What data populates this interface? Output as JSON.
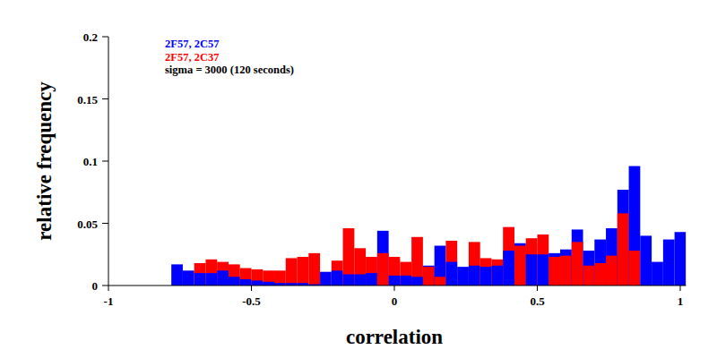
{
  "chart_data": {
    "type": "histogram",
    "x_label": "correlation",
    "y_label": "relative frequency",
    "annotations": [
      "sigma = 3000 (120 seconds)"
    ],
    "legend": "top-left",
    "xlim": [
      -1,
      1.02
    ],
    "xticks": [
      -1,
      -0.5,
      0,
      0.5,
      1
    ],
    "ylim": [
      0,
      0.2
    ],
    "yticks": [
      0,
      0.05,
      0.1,
      0.15,
      0.2
    ],
    "bins": [
      -0.78,
      -0.74,
      -0.7,
      -0.66,
      -0.62,
      -0.58,
      -0.54,
      -0.5,
      -0.46,
      -0.42,
      -0.38,
      -0.34,
      -0.3,
      -0.26,
      -0.22,
      -0.18,
      -0.14,
      -0.1,
      -0.06,
      -0.02,
      0.02,
      0.06,
      0.1,
      0.14,
      0.18,
      0.22,
      0.26,
      0.3,
      0.34,
      0.38,
      0.42,
      0.46,
      0.5,
      0.54,
      0.58,
      0.62,
      0.66,
      0.7,
      0.74,
      0.78,
      0.82,
      0.86,
      0.9,
      0.94,
      0.98,
      1.02
    ],
    "series": [
      {
        "name": "2F57, 2C57",
        "color": "#0000ff",
        "values": [
          0.017,
          0.012,
          0.01,
          0.01,
          0.012,
          0.007,
          0.005,
          0.004,
          0.003,
          0.002,
          0.002,
          0.002,
          0.001,
          0.011,
          0.012,
          0.009,
          0.009,
          0.01,
          0.044,
          0.008,
          0.008,
          0.007,
          0.016,
          0.032,
          0.019,
          0.015,
          0.016,
          0.015,
          0.016,
          0.028,
          0.034,
          0.025,
          0.025,
          0.026,
          0.029,
          0.045,
          0.028,
          0.037,
          0.046,
          0.077,
          0.096,
          0.04,
          0.019,
          0.037,
          0.043
        ]
      },
      {
        "name": "2F57, 2C37",
        "color": "#ff0000",
        "values": [
          0,
          0,
          0.018,
          0.021,
          0.019,
          0.017,
          0.014,
          0.013,
          0.012,
          0.012,
          0.022,
          0.023,
          0.026,
          0,
          0.02,
          0.046,
          0.03,
          0.023,
          0.026,
          0.023,
          0.019,
          0.039,
          0.015,
          0.007,
          0.036,
          0,
          0.035,
          0.022,
          0.021,
          0.047,
          0.032,
          0.038,
          0.041,
          0.023,
          0.024,
          0.035,
          0.016,
          0.018,
          0.024,
          0.058,
          0.028,
          0,
          0,
          0,
          0
        ]
      }
    ]
  }
}
